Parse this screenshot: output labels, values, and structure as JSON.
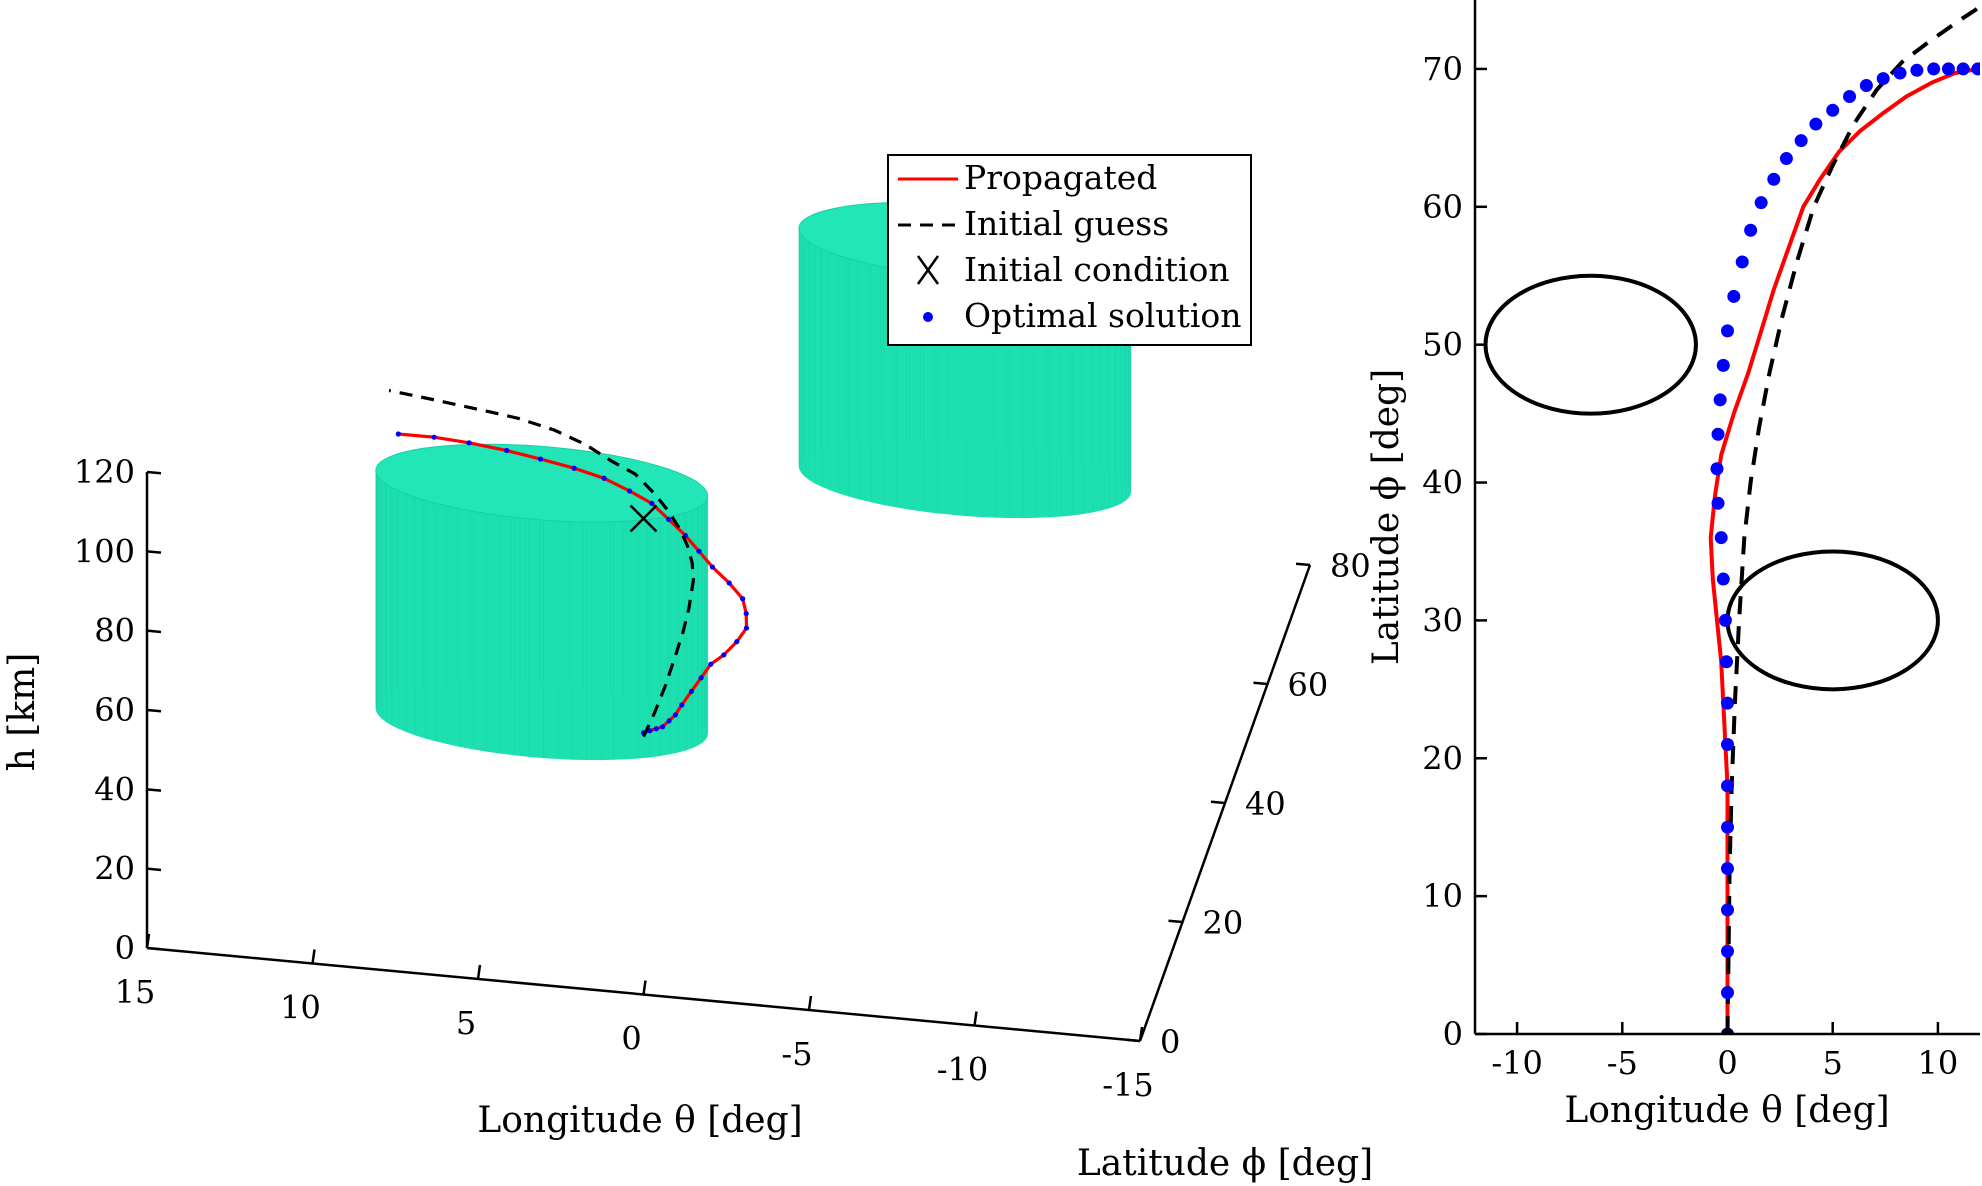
{
  "chart_data": [
    {
      "type": "line",
      "view": "3d",
      "xlabel": "Longitude θ [deg]",
      "ylabel": "Latitude ϕ [deg]",
      "zlabel": "h [km]",
      "xlim": [
        -15,
        15
      ],
      "ylim": [
        0,
        80
      ],
      "zlim": [
        0,
        120
      ],
      "xticks": [
        "15",
        "10",
        "5",
        "0",
        "-5",
        "-10",
        "-15"
      ],
      "yticks": [
        "0",
        "20",
        "40",
        "60",
        "80"
      ],
      "zticks": [
        "0",
        "20",
        "40",
        "60",
        "80",
        "100",
        "120"
      ],
      "legend": {
        "position": "inside-top-right",
        "entries": [
          "Propagated",
          "Initial guess",
          "Initial condition",
          "Optimal solution"
        ]
      },
      "obstacles": [
        {
          "kind": "cylinder",
          "color": "#1de0b0",
          "center_lon": -6.5,
          "center_lat": 50,
          "radius": 5,
          "h_min": 60,
          "h_max": 120
        },
        {
          "kind": "cylinder",
          "color": "#1de0b0",
          "center_lon": 5,
          "center_lat": 30,
          "radius": 5,
          "h_min": 20,
          "h_max": 80
        }
      ],
      "series": [
        {
          "name": "Propagated",
          "color": "#ff0000",
          "style": "solid",
          "lon": [
            0,
            0,
            0,
            0,
            0,
            0,
            0,
            -0.1,
            -0.2,
            -0.3,
            -0.5,
            -0.7,
            -0.8,
            -0.6,
            -0.3,
            0.3,
            1,
            1.6,
            2.2,
            2.9,
            3.6,
            4.4,
            5.3,
            6.3,
            7.4,
            8.5,
            9.7,
            10.8,
            11.9
          ],
          "lat": [
            0,
            3,
            6,
            9,
            12,
            15,
            18,
            21,
            24,
            27,
            30,
            33,
            36,
            39,
            42,
            45,
            48,
            51,
            54,
            57,
            60,
            62,
            64,
            65.5,
            66.8,
            68,
            69,
            69.7,
            70
          ],
          "h": [
            66,
            62,
            58,
            54,
            51,
            48,
            46,
            45,
            44,
            43,
            41,
            40,
            39,
            38,
            37,
            36,
            35,
            34,
            33,
            32,
            31,
            30.5,
            30,
            29.5,
            29,
            28.5,
            28,
            27.5,
            27
          ]
        },
        {
          "name": "Initial guess",
          "color": "#000000",
          "style": "dashed",
          "lon": [
            0,
            0.05,
            0.1,
            0.2,
            0.35,
            0.55,
            0.8,
            1.1,
            1.5,
            2,
            2.6,
            3.3,
            4.1,
            5,
            6,
            7.1,
            8.3,
            9.6,
            11,
            12.5
          ],
          "lat": [
            0,
            6,
            12,
            18,
            24,
            30,
            36,
            40,
            44,
            48,
            52,
            56,
            60,
            63,
            66,
            68.5,
            70.5,
            72,
            73.5,
            75
          ],
          "h": [
            65,
            62,
            60,
            58,
            55,
            52,
            50,
            48,
            46,
            44,
            42,
            40,
            38,
            36,
            35,
            34,
            33,
            32,
            31,
            30
          ]
        },
        {
          "name": "Initial condition",
          "color": "#000000",
          "marker": "x",
          "lon": [
            0
          ],
          "lat": [
            0
          ],
          "h": [
            120
          ]
        },
        {
          "name": "Optimal solution",
          "color": "#0000ff",
          "marker": "dot",
          "lon": [
            0,
            0,
            0,
            0,
            0,
            0,
            0,
            -0.1,
            -0.2,
            -0.3,
            -0.5,
            -0.7,
            -0.8,
            -0.6,
            -0.3,
            0.3,
            1,
            1.6,
            2.2,
            2.9,
            3.6,
            4.4,
            5.3,
            6.3,
            7.4,
            8.5,
            9.7,
            10.8,
            11.9
          ],
          "lat": [
            0,
            3,
            6,
            9,
            12,
            15,
            18,
            21,
            24,
            27,
            30,
            33,
            36,
            39,
            42,
            45,
            48,
            51,
            54,
            57,
            60,
            62,
            64,
            65.5,
            66.8,
            68,
            69,
            69.7,
            70
          ]
        }
      ]
    },
    {
      "type": "line",
      "view": "top",
      "xlabel": "Longitude θ [deg]",
      "ylabel": "Latitude ϕ [deg]",
      "xlim": [
        -12,
        12
      ],
      "ylim": [
        0,
        75
      ],
      "xticks": [
        -10,
        -5,
        0,
        5,
        10
      ],
      "yticks": [
        0,
        10,
        20,
        30,
        40,
        50,
        60,
        70
      ],
      "circles": [
        {
          "center_lon": -6.5,
          "center_lat": 50,
          "radius": 5
        },
        {
          "center_lon": 5,
          "center_lat": 30,
          "radius": 5
        }
      ],
      "series": [
        {
          "name": "Propagated",
          "color": "#ff0000",
          "style": "solid",
          "lon": [
            0,
            0,
            0,
            0,
            0,
            0,
            0,
            -0.1,
            -0.2,
            -0.3,
            -0.5,
            -0.7,
            -0.8,
            -0.6,
            -0.3,
            0.3,
            1,
            1.6,
            2.2,
            2.9,
            3.6,
            4.4,
            5.3,
            6.3,
            7.4,
            8.5,
            9.7,
            10.8,
            11.9
          ],
          "lat": [
            0,
            3,
            6,
            9,
            12,
            15,
            18,
            21,
            24,
            27,
            30,
            33,
            36,
            39,
            42,
            45,
            48,
            51,
            54,
            57,
            60,
            62,
            64,
            65.5,
            66.8,
            68,
            69,
            69.7,
            70
          ]
        },
        {
          "name": "Initial guess",
          "color": "#000000",
          "style": "dashed",
          "lon": [
            0,
            0.05,
            0.1,
            0.2,
            0.35,
            0.55,
            0.8,
            1.1,
            1.5,
            2,
            2.6,
            3.3,
            4.1,
            5,
            6,
            7.1,
            8.3,
            9.6,
            11,
            12.5
          ],
          "lat": [
            0,
            6,
            12,
            18,
            24,
            30,
            36,
            40,
            44,
            48,
            52,
            56,
            60,
            63,
            66,
            68.5,
            70.5,
            72,
            73.5,
            75
          ]
        },
        {
          "name": "Optimal solution",
          "color": "#0000ff",
          "marker": "dot",
          "lon": [
            0,
            0,
            0,
            0,
            0,
            0,
            0,
            0,
            0,
            -0.05,
            -0.1,
            -0.2,
            -0.3,
            -0.45,
            -0.5,
            -0.45,
            -0.35,
            -0.2,
            0,
            0.3,
            0.7,
            1.1,
            1.6,
            2.2,
            2.8,
            3.5,
            4.2,
            5,
            5.8,
            6.6,
            7.4,
            8.2,
            9,
            9.8,
            10.5,
            11.2,
            11.9
          ],
          "lat": [
            0,
            3,
            6,
            9,
            12,
            15,
            18,
            21,
            24,
            27,
            30,
            33,
            36,
            38.5,
            41,
            43.5,
            46,
            48.5,
            51,
            53.5,
            56,
            58.3,
            60.3,
            62,
            63.5,
            64.8,
            66,
            67,
            68,
            68.8,
            69.3,
            69.7,
            69.9,
            70,
            70,
            70,
            70
          ]
        },
        {
          "name": "Initial condition",
          "color": "#000000",
          "marker": "dot",
          "lon": [
            0
          ],
          "lat": [
            0
          ]
        }
      ]
    }
  ]
}
